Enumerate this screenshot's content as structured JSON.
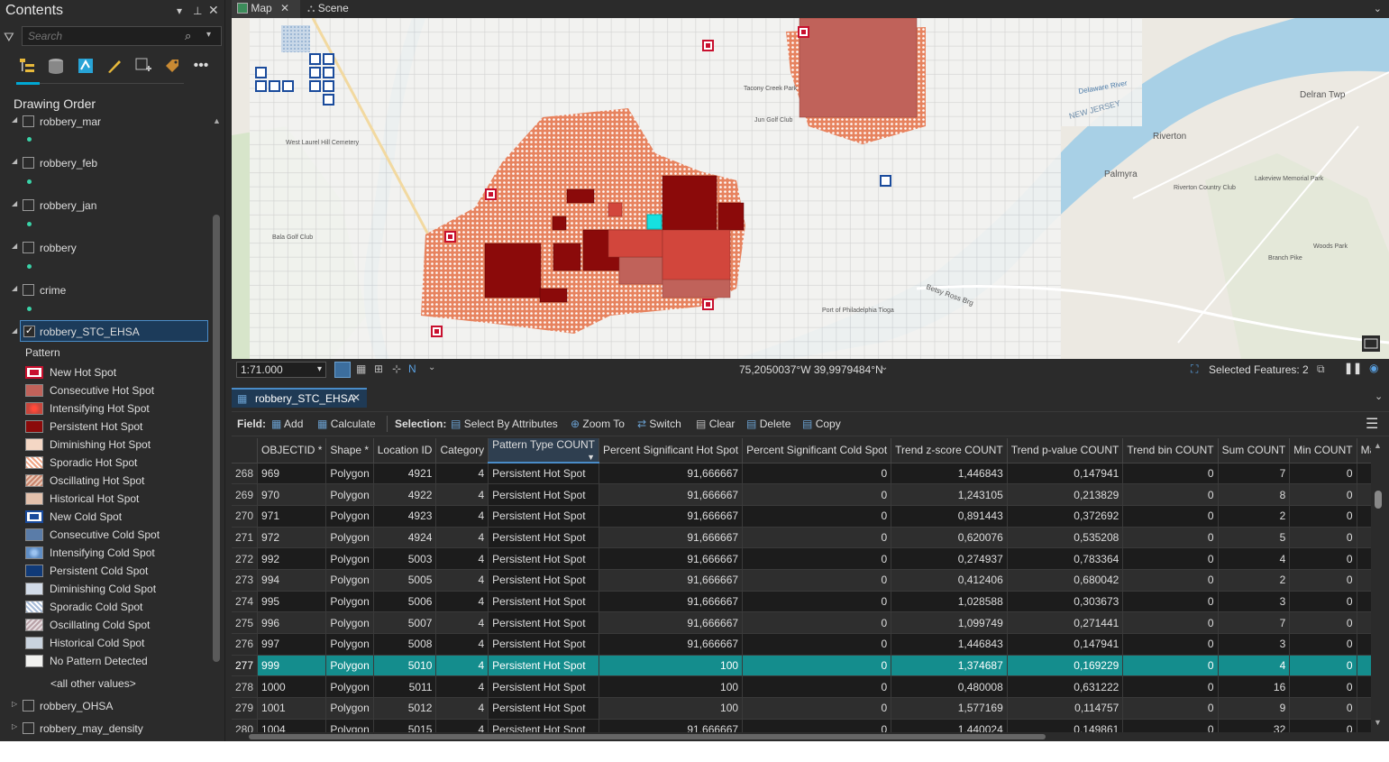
{
  "contents": {
    "title": "Contents",
    "search_placeholder": "Search",
    "drawing_order": "Drawing Order",
    "layers": [
      {
        "name": "robbery_mar",
        "checked": false
      },
      {
        "name": "robbery_feb",
        "checked": false
      },
      {
        "name": "robbery_jan",
        "checked": false
      },
      {
        "name": "robbery",
        "checked": false
      },
      {
        "name": "crime",
        "checked": false
      },
      {
        "name": "robbery_STC_EHSA",
        "checked": true
      },
      {
        "name": "robbery_OHSA",
        "checked": false
      },
      {
        "name": "robbery_may_density",
        "checked": false
      }
    ],
    "pattern_label": "Pattern",
    "legend": [
      {
        "label": "New Hot Spot",
        "color": "#c8102e"
      },
      {
        "label": "Consecutive Hot Spot",
        "color": "#c0625a"
      },
      {
        "label": "Intensifying Hot Spot",
        "color": "#d2463c"
      },
      {
        "label": "Persistent Hot Spot",
        "color": "#8b0a0a"
      },
      {
        "label": "Diminishing Hot Spot",
        "color": "#f4d7c5"
      },
      {
        "label": "Sporadic Hot Spot",
        "color": "#f0a585"
      },
      {
        "label": "Oscillating Hot Spot",
        "color": "#c9846c"
      },
      {
        "label": "Historical Hot Spot",
        "color": "#e3c1ac"
      },
      {
        "label": "New Cold Spot",
        "color": "#1a4b9c"
      },
      {
        "label": "Consecutive Cold Spot",
        "color": "#5a7ca8"
      },
      {
        "label": "Intensifying Cold Spot",
        "color": "#5f8dc4"
      },
      {
        "label": "Persistent Cold Spot",
        "color": "#103a78"
      },
      {
        "label": "Diminishing Cold Spot",
        "color": "#d2dbe8"
      },
      {
        "label": "Sporadic Cold Spot",
        "color": "#a7bcd8"
      },
      {
        "label": "Oscillating Cold Spot",
        "color": "#b9a2a8"
      },
      {
        "label": "Historical Cold Spot",
        "color": "#c9d3de"
      },
      {
        "label": "No Pattern Detected",
        "color": "#f1f1ef"
      }
    ],
    "all_other": "<all other values>"
  },
  "view_tabs": [
    "Map",
    "Scene"
  ],
  "map": {
    "scale": "1:71.000",
    "coordinates": "75,2050037°W 39,9979484°N",
    "selected_features": "Selected Features: 2",
    "places": [
      "Delran Twp",
      "Riverton",
      "Palmyra",
      "NEW JERSEY",
      "Delaware River",
      "Betsy Ross Brg",
      "Port of Philadelphia Tioga",
      "Riverton Country Club",
      "West Laurel Hill Cemetery",
      "Bala Golf Club",
      "Tacony Creek Park",
      "Jun Golf Club",
      "Woods Park",
      "Branch Pike",
      "Lakeview Memorial Park"
    ]
  },
  "table": {
    "tab_name": "robbery_STC_EHSA",
    "toolbar": {
      "field": "Field:",
      "add": "Add",
      "calculate": "Calculate",
      "selection": "Selection:",
      "select_by_attributes": "Select By Attributes",
      "zoom_to": "Zoom To",
      "switch": "Switch",
      "clear": "Clear",
      "delete": "Delete",
      "copy": "Copy"
    },
    "columns": [
      "OBJECTID *",
      "Shape *",
      "Location ID",
      "Category",
      "Pattern Type COUNT",
      "Percent Significant Hot Spot",
      "Percent Significant Cold Spot",
      "Trend z-score COUNT",
      "Trend p-value COUNT",
      "Trend bin COUNT",
      "Sum COUNT",
      "Min COUNT",
      "Max COUN"
    ],
    "rows": [
      [
        "268",
        "969",
        "Polygon",
        "4921",
        "4",
        "Persistent Hot Spot",
        "91,666667",
        "0",
        "1,446843",
        "0,147941",
        "0",
        "7",
        "0"
      ],
      [
        "269",
        "970",
        "Polygon",
        "4922",
        "4",
        "Persistent Hot Spot",
        "91,666667",
        "0",
        "1,243105",
        "0,213829",
        "0",
        "8",
        "0"
      ],
      [
        "270",
        "971",
        "Polygon",
        "4923",
        "4",
        "Persistent Hot Spot",
        "91,666667",
        "0",
        "0,891443",
        "0,372692",
        "0",
        "2",
        "0"
      ],
      [
        "271",
        "972",
        "Polygon",
        "4924",
        "4",
        "Persistent Hot Spot",
        "91,666667",
        "0",
        "0,620076",
        "0,535208",
        "0",
        "5",
        "0"
      ],
      [
        "272",
        "992",
        "Polygon",
        "5003",
        "4",
        "Persistent Hot Spot",
        "91,666667",
        "0",
        "0,274937",
        "0,783364",
        "0",
        "4",
        "0"
      ],
      [
        "273",
        "994",
        "Polygon",
        "5005",
        "4",
        "Persistent Hot Spot",
        "91,666667",
        "0",
        "0,412406",
        "0,680042",
        "0",
        "2",
        "0"
      ],
      [
        "274",
        "995",
        "Polygon",
        "5006",
        "4",
        "Persistent Hot Spot",
        "91,666667",
        "0",
        "1,028588",
        "0,303673",
        "0",
        "3",
        "0"
      ],
      [
        "275",
        "996",
        "Polygon",
        "5007",
        "4",
        "Persistent Hot Spot",
        "91,666667",
        "0",
        "1,099749",
        "0,271441",
        "0",
        "7",
        "0"
      ],
      [
        "276",
        "997",
        "Polygon",
        "5008",
        "4",
        "Persistent Hot Spot",
        "91,666667",
        "0",
        "1,446843",
        "0,147941",
        "0",
        "3",
        "0"
      ],
      [
        "277",
        "999",
        "Polygon",
        "5010",
        "4",
        "Persistent Hot Spot",
        "100",
        "0",
        "1,374687",
        "0,169229",
        "0",
        "4",
        "0"
      ],
      [
        "278",
        "1000",
        "Polygon",
        "5011",
        "4",
        "Persistent Hot Spot",
        "100",
        "0",
        "0,480008",
        "0,631222",
        "0",
        "16",
        "0"
      ],
      [
        "279",
        "1001",
        "Polygon",
        "5012",
        "4",
        "Persistent Hot Spot",
        "100",
        "0",
        "1,577169",
        "0,114757",
        "0",
        "9",
        "0"
      ],
      [
        "280",
        "1004",
        "Polygon",
        "5015",
        "4",
        "Persistent Hot Spot",
        "91,666667",
        "0",
        "1,440024",
        "0,149861",
        "0",
        "32",
        "0"
      ]
    ],
    "highlight_row": 9
  }
}
